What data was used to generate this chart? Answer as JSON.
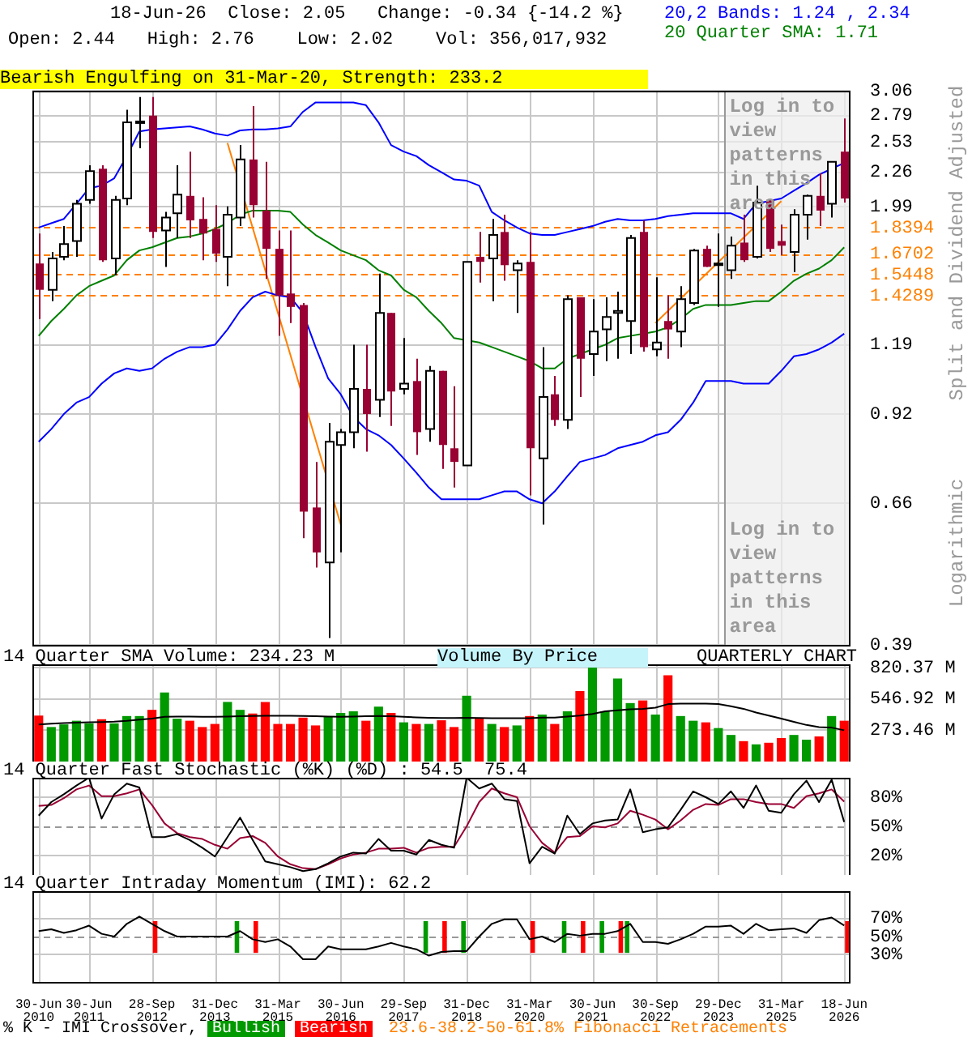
{
  "chart_data": [
    {
      "type": "candlestick",
      "title": "18-Jun-26  Close: 2.05   Change: -0.34 {-14.2 %}",
      "subtitle": "Open: 2.44   High: 2.76    Low: 2.02    Vol: 356,017,932",
      "ylabel": "Split and Dividend Adjusted",
      "annotations": [
        "Bearish Engulfing on 31-Mar-20, Strength: 233.2",
        "Log in to view patterns in this area",
        "Log in to view patterns in this area",
        "Logarithmic"
      ],
      "categories": [
        "30-Jun 2010",
        null,
        null,
        null,
        "30-Jun 2011",
        null,
        null,
        null,
        null,
        "28-Sep 2012",
        null,
        null,
        null,
        null,
        "31-Dec 2013",
        null,
        null,
        null,
        null,
        "31-Mar 2015",
        null,
        null,
        null,
        null,
        "30-Jun 2016",
        null,
        null,
        null,
        null,
        "29-Sep 2017",
        null,
        null,
        null,
        null,
        "31-Dec 2018",
        null,
        null,
        null,
        null,
        "31-Mar 2020",
        null,
        null,
        null,
        null,
        "30-Jun 2021",
        null,
        null,
        null,
        null,
        "30-Sep 2022",
        null,
        null,
        null,
        null,
        "29-Dec 2023",
        null,
        null,
        null,
        null,
        "31-Mar 2025",
        null,
        null,
        null,
        null,
        "18-Jun 2026"
      ],
      "ohlc": [
        [
          1.61,
          1.8,
          1.31,
          1.46
        ],
        [
          1.46,
          1.68,
          1.4,
          1.64
        ],
        [
          1.65,
          1.85,
          1.63,
          1.73
        ],
        [
          1.75,
          2.04,
          1.65,
          2.01
        ],
        [
          2.04,
          2.32,
          2.01,
          2.27
        ],
        [
          2.29,
          2.32,
          1.62,
          1.63
        ],
        [
          1.64,
          2.07,
          1.54,
          2.04
        ],
        [
          2.05,
          2.85,
          2.0,
          2.72
        ],
        [
          2.72,
          2.99,
          2.47,
          2.73
        ],
        [
          2.79,
          2.99,
          1.77,
          1.81
        ],
        [
          1.82,
          1.95,
          1.59,
          1.91
        ],
        [
          1.94,
          2.32,
          1.77,
          2.08
        ],
        [
          2.07,
          2.44,
          1.77,
          1.89
        ],
        [
          1.9,
          2.06,
          1.63,
          1.8
        ],
        [
          1.83,
          2.0,
          1.62,
          1.67
        ],
        [
          1.65,
          1.99,
          1.48,
          1.93
        ],
        [
          1.91,
          2.5,
          1.85,
          2.37
        ],
        [
          2.37,
          2.89,
          1.91,
          2.0
        ],
        [
          1.96,
          2.35,
          1.52,
          1.7
        ],
        [
          1.7,
          1.82,
          1.23,
          1.43
        ],
        [
          1.44,
          1.82,
          1.29,
          1.37
        ],
        [
          1.38,
          1.39,
          0.58,
          0.64
        ],
        [
          0.65,
          0.77,
          0.52,
          0.55
        ],
        [
          0.53,
          0.89,
          0.4,
          0.83
        ],
        [
          0.82,
          0.87,
          0.55,
          0.86
        ],
        [
          0.86,
          1.19,
          0.81,
          1.01
        ],
        [
          1.01,
          1.19,
          0.8,
          0.92
        ],
        [
          0.97,
          1.55,
          0.91,
          1.34
        ],
        [
          1.34,
          1.34,
          0.88,
          1.0
        ],
        [
          1.01,
          1.22,
          0.99,
          1.03
        ],
        [
          1.04,
          1.13,
          0.79,
          0.86
        ],
        [
          0.87,
          1.1,
          0.83,
          1.08
        ],
        [
          1.08,
          1.08,
          0.75,
          0.82
        ],
        [
          0.81,
          1.02,
          0.7,
          0.77
        ],
        [
          0.76,
          1.62,
          0.76,
          1.62
        ],
        [
          1.65,
          1.81,
          1.5,
          1.62
        ],
        [
          1.64,
          1.9,
          1.4,
          1.79
        ],
        [
          1.81,
          1.93,
          1.51,
          1.6
        ],
        [
          1.57,
          1.63,
          1.34,
          1.61
        ],
        [
          1.62,
          1.81,
          0.68,
          0.81
        ],
        [
          0.78,
          1.18,
          0.61,
          0.98
        ],
        [
          0.99,
          1.06,
          0.88,
          0.9
        ],
        [
          0.9,
          1.43,
          0.87,
          1.41
        ],
        [
          1.42,
          1.42,
          0.98,
          1.13
        ],
        [
          1.15,
          1.41,
          1.06,
          1.25
        ],
        [
          1.26,
          1.42,
          1.12,
          1.32
        ],
        [
          1.34,
          1.45,
          1.13,
          1.35
        ],
        [
          1.3,
          1.79,
          1.15,
          1.77
        ],
        [
          1.81,
          1.89,
          1.16,
          1.18
        ],
        [
          1.17,
          1.53,
          1.14,
          1.2
        ],
        [
          1.3,
          1.43,
          1.13,
          1.26
        ],
        [
          1.25,
          1.48,
          1.18,
          1.41
        ],
        [
          1.39,
          1.7,
          1.38,
          1.69
        ],
        [
          1.7,
          1.72,
          1.59,
          1.59
        ],
        [
          1.6,
          1.8,
          1.37,
          1.61
        ],
        [
          1.57,
          1.78,
          1.52,
          1.72
        ],
        [
          1.74,
          1.93,
          1.62,
          1.63
        ],
        [
          1.65,
          2.15,
          1.64,
          2.02
        ],
        [
          2.04,
          2.05,
          1.68,
          1.7
        ],
        [
          1.75,
          1.86,
          1.66,
          1.72
        ],
        [
          1.68,
          1.97,
          1.56,
          1.93
        ],
        [
          1.93,
          2.08,
          1.76,
          2.07
        ],
        [
          2.07,
          2.25,
          1.85,
          1.96
        ],
        [
          2.01,
          2.35,
          1.91,
          2.35
        ],
        [
          2.44,
          2.76,
          2.02,
          2.05
        ]
      ],
      "series": [
        {
          "type": "line",
          "name": "20,2 Bands: 1.24 , 2.34",
          "color": "#0000ff",
          "values": [
            1.84,
            1.87,
            1.9,
            2.01,
            2.13,
            2.15,
            2.21,
            2.4,
            2.63,
            2.65,
            2.66,
            2.67,
            2.68,
            2.65,
            2.61,
            2.59,
            2.64,
            2.65,
            2.65,
            2.66,
            2.68,
            2.83,
            2.93,
            2.93,
            2.93,
            2.93,
            2.9,
            2.72,
            2.5,
            2.44,
            2.4,
            2.32,
            2.26,
            2.2,
            2.19,
            2.15,
            1.95,
            1.89,
            1.84,
            1.8,
            1.79,
            1.79,
            1.81,
            1.83,
            1.85,
            1.88,
            1.9,
            1.89,
            1.89,
            1.9,
            1.92,
            1.93,
            1.94,
            1.94,
            1.94,
            1.94,
            1.9,
            2.01,
            2.03,
            2.05,
            2.11,
            2.17,
            2.24,
            2.29,
            2.34
          ]
        },
        {
          "type": "line",
          "color": "#0000ff",
          "values": [
            0.83,
            0.87,
            0.92,
            0.96,
            0.98,
            1.03,
            1.07,
            1.09,
            1.08,
            1.09,
            1.13,
            1.16,
            1.18,
            1.18,
            1.19,
            1.26,
            1.35,
            1.42,
            1.45,
            1.43,
            1.42,
            1.34,
            1.18,
            1.05,
            0.99,
            0.91,
            0.87,
            0.85,
            0.82,
            0.78,
            0.74,
            0.7,
            0.67,
            0.67,
            0.67,
            0.67,
            0.68,
            0.69,
            0.69,
            0.67,
            0.66,
            0.69,
            0.73,
            0.77,
            0.78,
            0.79,
            0.81,
            0.82,
            0.83,
            0.85,
            0.86,
            0.9,
            0.96,
            1.04,
            1.04,
            1.04,
            1.03,
            1.03,
            1.03,
            1.08,
            1.14,
            1.15,
            1.17,
            1.2,
            1.24
          ]
        },
        {
          "type": "line",
          "name": "20 Quarter SMA: 1.71",
          "color": "#008000",
          "values": [
            1.23,
            1.3,
            1.36,
            1.43,
            1.48,
            1.51,
            1.54,
            1.63,
            1.69,
            1.71,
            1.74,
            1.77,
            1.78,
            1.8,
            1.83,
            1.87,
            1.93,
            1.96,
            1.96,
            1.96,
            1.95,
            1.86,
            1.79,
            1.74,
            1.69,
            1.66,
            1.63,
            1.57,
            1.54,
            1.46,
            1.42,
            1.35,
            1.29,
            1.22,
            1.21,
            1.2,
            1.18,
            1.16,
            1.14,
            1.12,
            1.09,
            1.09,
            1.13,
            1.15,
            1.17,
            1.19,
            1.22,
            1.23,
            1.24,
            1.25,
            1.27,
            1.31,
            1.36,
            1.38,
            1.38,
            1.38,
            1.39,
            1.4,
            1.4,
            1.45,
            1.51,
            1.55,
            1.58,
            1.63,
            1.71
          ]
        },
        {
          "type": "line",
          "color": "#ff8000",
          "values": [
            null,
            null,
            null,
            null,
            null,
            null,
            null,
            null,
            null,
            null,
            null,
            null,
            null,
            null,
            null,
            2.52,
            null,
            null,
            null,
            null,
            null,
            null,
            null,
            null,
            0.61,
            null,
            null,
            null,
            null,
            null,
            null,
            null,
            null,
            null,
            null,
            null,
            null,
            null,
            null,
            null,
            null,
            null,
            null,
            null,
            null,
            null,
            null,
            null,
            null,
            null,
            null,
            null,
            null,
            null,
            null,
            null,
            null,
            null,
            null,
            null,
            null,
            null,
            null,
            null,
            null
          ]
        },
        {
          "type": "line",
          "color": "#ff8000",
          "values": [
            null,
            null,
            null,
            null,
            null,
            null,
            null,
            null,
            null,
            null,
            null,
            null,
            null,
            null,
            null,
            null,
            null,
            null,
            null,
            null,
            null,
            null,
            null,
            null,
            null,
            null,
            null,
            null,
            null,
            null,
            null,
            null,
            null,
            null,
            null,
            null,
            null,
            null,
            null,
            null,
            null,
            null,
            null,
            null,
            null,
            null,
            null,
            null,
            null,
            1.29,
            null,
            null,
            null,
            null,
            null,
            null,
            null,
            null,
            null,
            2.03,
            null,
            null,
            null,
            null,
            null
          ]
        }
      ],
      "ylim": [
        0.39,
        3.06
      ],
      "yticks": [
        0.39,
        0.66,
        0.92,
        1.19,
        1.99,
        2.26,
        2.53,
        2.79,
        3.06
      ],
      "log": true,
      "grid": true,
      "legend": "top right",
      "tick_labels": "y",
      "ref_lines": [
        {
          "axis": "y",
          "value": 1.8394,
          "label": "1.8394",
          "color": "#ff8000",
          "line_style": "dashed"
        },
        {
          "axis": "y",
          "value": 1.6702,
          "label": "1.6702",
          "color": "#ff8000",
          "line_style": "dashed"
        },
        {
          "axis": "y",
          "value": 1.5448,
          "label": "1.5448",
          "color": "#ff8000",
          "line_style": "dashed"
        },
        {
          "axis": "y",
          "value": 1.4289,
          "label": "1.4289",
          "color": "#ff8000",
          "line_style": "dashed"
        }
      ],
      "bands": [
        {
          "axis": "x",
          "from": "29-Dec 2023",
          "to": "18-Jun 2026",
          "color": "#eeeeee"
        }
      ]
    },
    {
      "type": "bar",
      "title": "14 Quarter SMA Volume: 234.23 M",
      "annotations": [
        "Volume By Price",
        "QUARTERLY CHART"
      ],
      "categories": [
        "30-Jun 2010",
        null,
        null,
        null,
        "30-Jun 2011",
        null,
        null,
        null,
        null,
        "28-Sep 2012",
        null,
        null,
        null,
        null,
        "31-Dec 2013",
        null,
        null,
        null,
        null,
        "31-Mar 2015",
        null,
        null,
        null,
        null,
        "30-Jun 2016",
        null,
        null,
        null,
        null,
        "29-Sep 2017",
        null,
        null,
        null,
        null,
        "31-Dec 2018",
        null,
        null,
        null,
        null,
        "31-Mar 2020",
        null,
        null,
        null,
        null,
        "30-Jun 2021",
        null,
        null,
        null,
        null,
        "30-Sep 2022",
        null,
        null,
        null,
        null,
        "29-Dec 2023",
        null,
        null,
        null,
        null,
        "31-Mar 2025",
        null,
        null,
        null,
        null,
        "18-Jun 2026"
      ],
      "series": [
        {
          "values": [
            401,
            301,
            324,
            356,
            333,
            369,
            333,
            397,
            397,
            451,
            602,
            374,
            356,
            301,
            328,
            520,
            451,
            419,
            520,
            328,
            328,
            383,
            315,
            392,
            424,
            438,
            356,
            479,
            424,
            342,
            328,
            328,
            360,
            301,
            574,
            374,
            328,
            301,
            315,
            397,
            410,
            328,
            438,
            615,
            845,
            438,
            725,
            510,
            533,
            410,
            752,
            397,
            356,
            342,
            292,
            232,
            178,
            150,
            164,
            205,
            232,
            191,
            219,
            397,
            356
          ],
          "colors": [
            "#ff0000",
            "#009900",
            "#009900",
            "#009900",
            "#009900",
            "#ff0000",
            "#009900",
            "#009900",
            "#009900",
            "#ff0000",
            "#009900",
            "#009900",
            "#ff0000",
            "#ff0000",
            "#ff0000",
            "#009900",
            "#009900",
            "#ff0000",
            "#ff0000",
            "#ff0000",
            "#ff0000",
            "#ff0000",
            "#ff0000",
            "#009900",
            "#009900",
            "#009900",
            "#ff0000",
            "#009900",
            "#ff0000",
            "#009900",
            "#ff0000",
            "#009900",
            "#ff0000",
            "#ff0000",
            "#009900",
            "#ff0000",
            "#009900",
            "#ff0000",
            "#009900",
            "#ff0000",
            "#009900",
            "#ff0000",
            "#009900",
            "#ff0000",
            "#009900",
            "#009900",
            "#009900",
            "#009900",
            "#ff0000",
            "#009900",
            "#ff0000",
            "#009900",
            "#009900",
            "#ff0000",
            "#009900",
            "#009900",
            "#ff0000",
            "#009900",
            "#ff0000",
            "#ff0000",
            "#009900",
            "#009900",
            "#ff0000",
            "#009900",
            "#ff0000"
          ]
        },
        {
          "type": "line",
          "color": "#000000",
          "values": [
            324,
            330,
            335,
            340,
            342,
            345,
            348,
            355,
            365,
            375,
            390,
            392,
            392,
            390,
            390,
            392,
            395,
            398,
            400,
            400,
            400,
            398,
            395,
            392,
            390,
            392,
            395,
            398,
            395,
            390,
            385,
            382,
            380,
            380,
            382,
            380,
            378,
            378,
            378,
            378,
            383,
            383,
            392,
            401,
            415,
            438,
            447,
            456,
            460,
            470,
            501,
            506,
            506,
            506,
            501,
            483,
            460,
            428,
            401,
            374,
            346,
            319,
            301,
            296,
            273
          ]
        }
      ],
      "ylim": [
        0,
        848
      ],
      "yticks": [
        {
          "value": 273.46,
          "label": "273.46 M"
        },
        {
          "value": 546.92,
          "label": "546.92 M"
        },
        {
          "value": 820.37,
          "label": "820.37 M"
        }
      ],
      "grid": true,
      "tick_labels": "y"
    },
    {
      "type": "line",
      "title": "14 Quarter Fast Stochastic (%K) (%D) : 54.5  75.4",
      "categories": [
        "30-Jun 2010",
        null,
        null,
        null,
        "30-Jun 2011",
        null,
        null,
        null,
        null,
        "28-Sep 2012",
        null,
        null,
        null,
        null,
        "31-Dec 2013",
        null,
        null,
        null,
        null,
        "31-Mar 2015",
        null,
        null,
        null,
        null,
        "30-Jun 2016",
        null,
        null,
        null,
        null,
        "29-Sep 2017",
        null,
        null,
        null,
        null,
        "31-Dec 2018",
        null,
        null,
        null,
        null,
        "31-Mar 2020",
        null,
        null,
        null,
        null,
        "30-Jun 2021",
        null,
        null,
        null,
        null,
        "30-Sep 2022",
        null,
        null,
        null,
        null,
        "29-Dec 2023",
        null,
        null,
        null,
        null,
        "31-Mar 2025",
        null,
        null,
        null,
        null,
        "18-Jun 2026"
      ],
      "series": [
        {
          "color": "#000000",
          "values": [
            61,
            75,
            83,
            92,
            100,
            58,
            83,
            94,
            90,
            39,
            39,
            42,
            36,
            28,
            19,
            39,
            59,
            36,
            14,
            11,
            8,
            4,
            6,
            12,
            19,
            23,
            22,
            37,
            25,
            25,
            21,
            36,
            31,
            28,
            100,
            89,
            94,
            78,
            76,
            12,
            29,
            22,
            61,
            42,
            53,
            56,
            57,
            88,
            44,
            47,
            49,
            67,
            86,
            80,
            73,
            86,
            69,
            92,
            66,
            64,
            83,
            97,
            75,
            98,
            54.5
          ]
        },
        {
          "color": "#990033",
          "values": [
            71,
            72,
            79,
            88,
            92,
            81,
            81,
            84,
            88,
            72,
            53,
            43,
            39,
            37,
            31,
            27,
            38,
            40,
            33,
            19,
            11,
            7,
            6,
            11,
            17,
            21,
            23,
            27,
            27,
            28,
            23,
            28,
            29,
            29,
            50,
            75,
            89,
            84,
            80,
            50,
            33,
            23,
            39,
            40,
            50,
            49,
            53,
            66,
            62,
            57,
            47,
            56,
            67,
            73,
            72,
            78,
            78,
            75,
            73,
            73,
            69,
            81,
            84,
            88,
            75.4
          ]
        }
      ],
      "ylim": [
        0,
        100
      ],
      "yticks": [
        {
          "value": 20,
          "label": "20%"
        },
        {
          "value": 50,
          "label": "50%"
        },
        {
          "value": 80,
          "label": "80%"
        }
      ],
      "grid": true,
      "tick_labels": "y",
      "ref_lines": [
        {
          "axis": "y",
          "value": 50,
          "color": "#999999",
          "line_style": "dashed"
        }
      ]
    },
    {
      "type": "line",
      "title": "14 Quarter Intraday Momentum (IMI): 62.2",
      "annotations": [
        "23.6-38.2-50-61.8% Fibonacci Retracements"
      ],
      "categories": [
        "30-Jun 2010",
        null,
        null,
        null,
        "30-Jun 2011",
        null,
        null,
        null,
        null,
        "28-Sep 2012",
        null,
        null,
        null,
        null,
        "31-Dec 2013",
        null,
        null,
        null,
        null,
        "31-Mar 2015",
        null,
        null,
        null,
        null,
        "30-Jun 2016",
        null,
        null,
        null,
        null,
        "29-Sep 2017",
        null,
        null,
        null,
        null,
        "31-Dec 2018",
        null,
        null,
        null,
        null,
        "31-Mar 2020",
        null,
        null,
        null,
        null,
        "30-Jun 2021",
        null,
        null,
        null,
        null,
        "30-Sep 2022",
        null,
        null,
        null,
        null,
        "29-Dec 2023",
        null,
        null,
        null,
        null,
        "31-Mar 2025",
        null,
        null,
        null,
        null,
        "18-Jun 2026"
      ],
      "series": [
        {
          "color": "#000000",
          "values": [
            56,
            58,
            54,
            57,
            62,
            53,
            50,
            64,
            72,
            64,
            56,
            50,
            50,
            50,
            50,
            50,
            56,
            47,
            44,
            47,
            39,
            25,
            25,
            39,
            36,
            36,
            36,
            39,
            43,
            39,
            36,
            29,
            33,
            34,
            34,
            50,
            64,
            69,
            69,
            47,
            50,
            44,
            53,
            51,
            53,
            53,
            56,
            64,
            44,
            44,
            42,
            47,
            53,
            61,
            61,
            62,
            53,
            64,
            57,
            58,
            59,
            54,
            68,
            71,
            62.2
          ]
        },
        {
          "type": "bar",
          "name": "Bullish",
          "color": "#009900",
          "base": [
            null,
            null,
            null,
            null,
            null,
            null,
            null,
            null,
            null,
            null,
            null,
            null,
            null,
            null,
            null,
            null,
            32,
            null,
            null,
            null,
            null,
            null,
            null,
            null,
            null,
            null,
            null,
            null,
            null,
            null,
            null,
            32,
            null,
            null,
            32,
            null,
            null,
            null,
            null,
            null,
            null,
            null,
            32,
            null,
            null,
            32,
            null,
            32,
            null,
            null,
            null,
            null,
            null,
            null,
            null,
            null,
            null,
            null,
            null,
            null,
            null,
            null,
            null,
            null,
            null
          ],
          "values": [
            null,
            null,
            null,
            null,
            null,
            null,
            null,
            null,
            null,
            null,
            null,
            null,
            null,
            null,
            null,
            null,
            35,
            null,
            null,
            null,
            null,
            null,
            null,
            null,
            null,
            null,
            null,
            null,
            null,
            null,
            null,
            35,
            null,
            null,
            35,
            null,
            null,
            null,
            null,
            null,
            null,
            null,
            35,
            null,
            null,
            35,
            null,
            35,
            null,
            null,
            null,
            null,
            null,
            null,
            null,
            null,
            null,
            null,
            null,
            null,
            null,
            null,
            null,
            null,
            null
          ]
        },
        {
          "type": "bar",
          "name": "Bearish",
          "color": "#ff0000",
          "base": [
            null,
            null,
            null,
            null,
            null,
            null,
            null,
            null,
            null,
            32,
            null,
            null,
            null,
            null,
            null,
            null,
            null,
            32,
            null,
            null,
            null,
            null,
            null,
            null,
            null,
            null,
            null,
            null,
            null,
            null,
            null,
            null,
            32,
            null,
            null,
            null,
            null,
            null,
            null,
            32,
            null,
            null,
            null,
            32,
            null,
            null,
            32,
            null,
            null,
            null,
            null,
            null,
            null,
            null,
            null,
            null,
            null,
            null,
            null,
            null,
            null,
            null,
            null,
            null,
            32
          ],
          "values": [
            null,
            null,
            null,
            null,
            null,
            null,
            null,
            null,
            null,
            35,
            null,
            null,
            null,
            null,
            null,
            null,
            null,
            35,
            null,
            null,
            null,
            null,
            null,
            null,
            null,
            null,
            null,
            null,
            null,
            null,
            null,
            null,
            35,
            null,
            null,
            null,
            null,
            null,
            null,
            35,
            null,
            null,
            null,
            35,
            null,
            null,
            35,
            null,
            null,
            null,
            null,
            null,
            null,
            null,
            null,
            null,
            null,
            null,
            null,
            null,
            null,
            null,
            null,
            null,
            35
          ]
        }
      ],
      "ylim": [
        0,
        100
      ],
      "yticks": [
        {
          "value": 30,
          "label": "30%"
        },
        {
          "value": 50,
          "label": "50%"
        },
        {
          "value": 70,
          "label": "70%"
        }
      ],
      "grid": true,
      "legend": "bottom",
      "legend_title": "% K - IMI Crossover,",
      "ref_lines": [
        {
          "axis": "y",
          "value": 50,
          "color": "#999999",
          "line_style": "dashed"
        }
      ]
    }
  ]
}
